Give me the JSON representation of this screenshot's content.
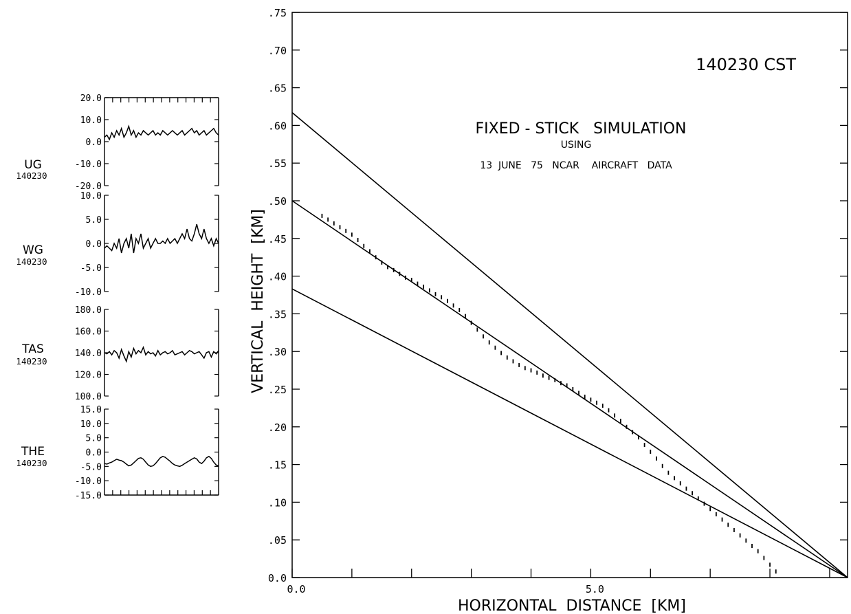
{
  "chart_data": [
    {
      "type": "line",
      "title": "FIXED - STICK   SIMULATION",
      "subtitle_line1": "USING",
      "subtitle_line2": "13  JUNE   75   NCAR    AIRCRAFT   DATA",
      "time_label": "140230  CST",
      "xlabel": "HORIZONTAL  DISTANCE  [KM]",
      "ylabel": "VERTICAL  HEIGHT  [KM]",
      "xlim": [
        0,
        9.3
      ],
      "ylim": [
        0,
        0.75
      ],
      "x_tick_labels": [
        {
          "x": 0,
          "label": "0.0"
        },
        {
          "x": 5,
          "label": "5.0"
        }
      ],
      "y_ticks": [
        0,
        0.05,
        0.1,
        0.15,
        0.2,
        0.25,
        0.3,
        0.35,
        0.4,
        0.45,
        0.5,
        0.55,
        0.6,
        0.65,
        0.7,
        0.75
      ],
      "y_tick_labels": [
        "0.0",
        ".05",
        ".10",
        ".15",
        ".20",
        ".25",
        ".30",
        ".35",
        ".40",
        ".45",
        ".50",
        ".55",
        ".60",
        ".65",
        ".70",
        ".75"
      ],
      "grid": false,
      "series": [
        {
          "values": [
            [
              0,
              0.617
            ],
            [
              9.3,
              0.0
            ]
          ],
          "style": "solid"
        },
        {
          "values": [
            [
              0,
              0.5
            ],
            [
              9.3,
              0.0
            ]
          ],
          "style": "solid"
        },
        {
          "values": [
            [
              0,
              0.383
            ],
            [
              9.3,
              0.0
            ]
          ],
          "style": "solid"
        },
        {
          "style": "points",
          "values": [
            [
              0.5,
              0.48
            ],
            [
              0.6,
              0.475
            ],
            [
              0.7,
              0.47
            ],
            [
              0.8,
              0.465
            ],
            [
              0.9,
              0.46
            ],
            [
              1.0,
              0.455
            ],
            [
              1.1,
              0.448
            ],
            [
              1.2,
              0.44
            ],
            [
              1.3,
              0.433
            ],
            [
              1.4,
              0.425
            ],
            [
              1.5,
              0.418
            ],
            [
              1.6,
              0.412
            ],
            [
              1.7,
              0.408
            ],
            [
              1.8,
              0.403
            ],
            [
              1.9,
              0.398
            ],
            [
              2.0,
              0.395
            ],
            [
              2.1,
              0.39
            ],
            [
              2.2,
              0.386
            ],
            [
              2.3,
              0.381
            ],
            [
              2.4,
              0.376
            ],
            [
              2.5,
              0.372
            ],
            [
              2.6,
              0.367
            ],
            [
              2.7,
              0.361
            ],
            [
              2.8,
              0.355
            ],
            [
              2.9,
              0.347
            ],
            [
              3.0,
              0.338
            ],
            [
              3.1,
              0.329
            ],
            [
              3.2,
              0.32
            ],
            [
              3.3,
              0.312
            ],
            [
              3.4,
              0.305
            ],
            [
              3.5,
              0.298
            ],
            [
              3.6,
              0.292
            ],
            [
              3.7,
              0.287
            ],
            [
              3.8,
              0.282
            ],
            [
              3.9,
              0.278
            ],
            [
              4.0,
              0.275
            ],
            [
              4.1,
              0.272
            ],
            [
              4.2,
              0.268
            ],
            [
              4.3,
              0.265
            ],
            [
              4.4,
              0.262
            ],
            [
              4.5,
              0.258
            ],
            [
              4.6,
              0.255
            ],
            [
              4.7,
              0.25
            ],
            [
              4.8,
              0.245
            ],
            [
              4.9,
              0.24
            ],
            [
              5.0,
              0.236
            ],
            [
              5.1,
              0.232
            ],
            [
              5.2,
              0.228
            ],
            [
              5.3,
              0.222
            ],
            [
              5.4,
              0.215
            ],
            [
              5.5,
              0.208
            ],
            [
              5.6,
              0.2
            ],
            [
              5.7,
              0.193
            ],
            [
              5.8,
              0.186
            ],
            [
              5.9,
              0.176
            ],
            [
              6.0,
              0.167
            ],
            [
              6.1,
              0.158
            ],
            [
              6.2,
              0.148
            ],
            [
              6.3,
              0.139
            ],
            [
              6.4,
              0.132
            ],
            [
              6.5,
              0.125
            ],
            [
              6.6,
              0.118
            ],
            [
              6.7,
              0.112
            ],
            [
              6.8,
              0.105
            ],
            [
              6.9,
              0.098
            ],
            [
              7.0,
              0.091
            ],
            [
              7.1,
              0.084
            ],
            [
              7.2,
              0.077
            ],
            [
              7.3,
              0.07
            ],
            [
              7.4,
              0.063
            ],
            [
              7.5,
              0.056
            ],
            [
              7.6,
              0.049
            ],
            [
              7.7,
              0.042
            ],
            [
              7.8,
              0.035
            ],
            [
              7.9,
              0.026
            ],
            [
              8.0,
              0.017
            ],
            [
              8.1,
              0.008
            ]
          ]
        }
      ]
    },
    {
      "type": "line",
      "label": "UG",
      "time": "140230",
      "ylim": [
        -20,
        20
      ],
      "y_tick_labels": [
        "20.0",
        "10.0",
        "0.0",
        "-10.0",
        "-20.0"
      ],
      "y_ticks": [
        20,
        10,
        0,
        -10,
        -20
      ],
      "series": [
        {
          "values": [
            2,
            3,
            1,
            4,
            2,
            5,
            3,
            6,
            2,
            4,
            7,
            3,
            5,
            2,
            4,
            3,
            5,
            4,
            3,
            4,
            5,
            3,
            4,
            3,
            5,
            4,
            3,
            4,
            5,
            4,
            3,
            4,
            5,
            3,
            4,
            5,
            6,
            4,
            5,
            3,
            4,
            5,
            3,
            4,
            5,
            6,
            4,
            3
          ]
        }
      ]
    },
    {
      "type": "line",
      "label": "WG",
      "time": "140230",
      "ylim": [
        -10,
        10
      ],
      "y_tick_labels": [
        "10.0",
        "5.0",
        "0.0",
        "-5.0",
        "-10.0"
      ],
      "y_ticks": [
        10,
        5,
        0,
        -5,
        -10
      ],
      "series": [
        {
          "values": [
            -1,
            -0.5,
            -1,
            -1.5,
            0,
            -1,
            1,
            -2,
            0,
            1,
            -1,
            2,
            -2,
            1,
            0,
            2,
            -1,
            0,
            1,
            -1,
            0,
            1,
            0,
            0,
            0.5,
            0,
            1,
            0,
            0.5,
            1,
            0,
            1,
            2,
            1,
            3,
            1,
            0.5,
            2,
            4,
            2,
            1,
            3,
            1,
            0,
            1,
            -0.5,
            1,
            0
          ]
        }
      ]
    },
    {
      "type": "line",
      "label": "TAS",
      "time": "140230",
      "ylim": [
        100,
        180
      ],
      "y_tick_labels": [
        "180.0",
        "160.0",
        "140.0",
        "120.0",
        "100.0"
      ],
      "y_ticks": [
        180,
        160,
        140,
        120,
        100
      ],
      "series": [
        {
          "values": [
            140,
            139,
            141,
            138,
            142,
            140,
            135,
            143,
            137,
            132,
            141,
            136,
            144,
            139,
            142,
            140,
            145,
            138,
            141,
            139,
            140,
            137,
            142,
            138,
            140,
            141,
            139,
            140,
            142,
            138,
            139,
            140,
            141,
            138,
            140,
            142,
            141,
            139,
            140,
            141,
            138,
            135,
            140,
            141,
            136,
            141,
            139,
            142
          ]
        }
      ]
    },
    {
      "type": "line",
      "label": "THE",
      "time": "140230",
      "ylim": [
        -15,
        15
      ],
      "y_tick_labels": [
        "15.0",
        "10.0",
        "5.0",
        "0.0",
        "-5.0",
        "-10.0",
        "-15.0"
      ],
      "y_ticks": [
        15,
        10,
        5,
        0,
        -5,
        -10,
        -15
      ],
      "series": [
        {
          "values": [
            -4,
            -4.2,
            -3.8,
            -3.5,
            -3,
            -2.5,
            -2.8,
            -3,
            -3.5,
            -4.2,
            -4.8,
            -4.5,
            -3.8,
            -3,
            -2.2,
            -2,
            -2.5,
            -3.5,
            -4.5,
            -5,
            -4.8,
            -4,
            -3,
            -2,
            -1.5,
            -1.8,
            -2.5,
            -3.2,
            -4,
            -4.5,
            -4.8,
            -5,
            -4.6,
            -4,
            -3.5,
            -3,
            -2.5,
            -2,
            -2.4,
            -3.5,
            -4,
            -3.2,
            -2,
            -1.5,
            -2.2,
            -3.5,
            -4.5,
            -4.8
          ]
        }
      ]
    }
  ]
}
